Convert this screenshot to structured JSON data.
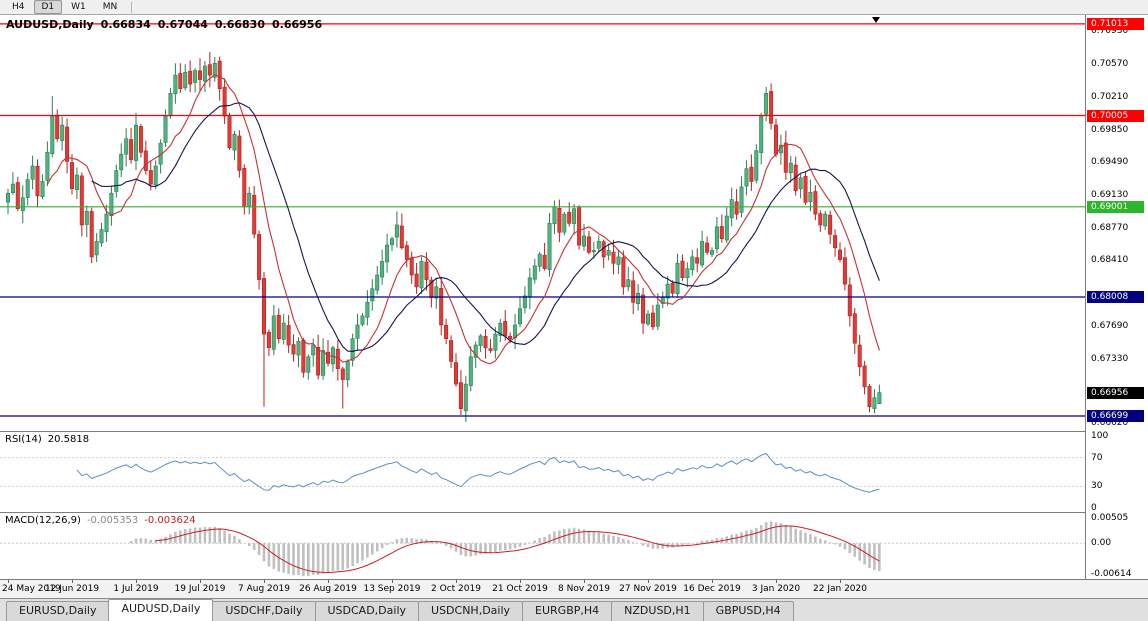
{
  "window": {
    "title": "AUDUSD,Daily"
  },
  "toolbar": {
    "timeframes": [
      {
        "label": "H4",
        "active": false
      },
      {
        "label": "D1",
        "active": true
      },
      {
        "label": "W1",
        "active": false
      },
      {
        "label": "MN",
        "active": false
      }
    ]
  },
  "chart": {
    "symbol_label": "AUDUSD,Daily",
    "ohlc": {
      "open": "0.66834",
      "high": "0.67044",
      "low": "0.66830",
      "close": "0.66956"
    }
  },
  "indicators": {
    "rsi": {
      "label": "RSI(14)",
      "value": "20.5818",
      "axis_labels": [
        "100",
        "70",
        "30",
        "0"
      ]
    },
    "macd": {
      "label": "MACD(12,26,9)",
      "main_value": "-0.005353",
      "signal_value": "-0.003624",
      "axis_labels": [
        "0.00505",
        "0.00",
        "-0.00614"
      ]
    }
  },
  "tabs": [
    {
      "label": "EURUSD,Daily",
      "active": false
    },
    {
      "label": "AUDUSD,Daily",
      "active": true
    },
    {
      "label": "USDCHF,Daily",
      "active": false
    },
    {
      "label": "USDCAD,Daily",
      "active": false
    },
    {
      "label": "USDCNH,Daily",
      "active": false
    },
    {
      "label": "EURGBP,H4",
      "active": false
    },
    {
      "label": "NZDUSD,H1",
      "active": false
    },
    {
      "label": "GBPUSD,H4",
      "active": false
    }
  ],
  "colors": {
    "up_fill": "#4db37f",
    "up_stroke": "#2e7d54",
    "down_fill": "#e53935",
    "down_stroke": "#b02320",
    "ma_fast": "#c83232",
    "ma_slow": "#15154d",
    "rsi_line": "#5b8fc9",
    "macd_hist": "#c0c0c0",
    "macd_signal": "#cc2020",
    "level_red": "#ff0000",
    "level_green": "#2db52d",
    "level_navy": "#000080",
    "current_price_bg": "#000000"
  },
  "chart_data": {
    "type": "candlestick",
    "symbol": "AUDUSD",
    "timeframe": "Daily",
    "ohlc_readout": {
      "open": 0.66834,
      "high": 0.67044,
      "low": 0.6683,
      "close": 0.66956
    },
    "x_ticks": [
      "24 May 2019",
      "12 Jun 2019",
      "1 Jul 2019",
      "19 Jul 2019",
      "7 Aug 2019",
      "26 Aug 2019",
      "13 Sep 2019",
      "2 Oct 2019",
      "21 Oct 2019",
      "8 Nov 2019",
      "27 Nov 2019",
      "16 Dec 2019",
      "3 Jan 2020",
      "22 Jan 2020"
    ],
    "price_axis": {
      "p_top": 0.71089,
      "p_bottom": 0.66556,
      "labels": [
        "0.70930",
        "0.70570",
        "0.70210",
        "0.69850",
        "0.69490",
        "0.69130",
        "0.68770",
        "0.68410",
        "0.67690",
        "0.67330",
        "0.66620"
      ]
    },
    "price_tags": [
      {
        "value": "0.71013",
        "color": "#ff0000",
        "line": true,
        "kind": "resistance"
      },
      {
        "value": "0.70005",
        "color": "#ff0000",
        "line": true,
        "kind": "resistance"
      },
      {
        "value": "0.69001",
        "color": "#2db52d",
        "line": true,
        "kind": "level"
      },
      {
        "value": "0.68008",
        "color": "#000080",
        "line": true,
        "kind": "support"
      },
      {
        "value": "0.66956",
        "color": "#000000",
        "line": false,
        "kind": "current-price"
      },
      {
        "value": "0.66699",
        "color": "#000080",
        "line": true,
        "kind": "support"
      }
    ],
    "closes": [
      0.6915,
      0.6925,
      0.6898,
      0.691,
      0.693,
      0.6945,
      0.6912,
      0.6928,
      0.696,
      0.7,
      0.6975,
      0.699,
      0.695,
      0.692,
      0.6935,
      0.688,
      0.6895,
      0.6845,
      0.6862,
      0.6875,
      0.6892,
      0.6915,
      0.694,
      0.6958,
      0.6975,
      0.6952,
      0.699,
      0.696,
      0.694,
      0.6925,
      0.6945,
      0.697,
      0.7,
      0.7025,
      0.7045,
      0.703,
      0.7048,
      0.7035,
      0.705,
      0.704,
      0.7055,
      0.7045,
      0.7058,
      0.703,
      0.7,
      0.6965,
      0.698,
      0.694,
      0.69,
      0.6915,
      0.687,
      0.682,
      0.676,
      0.6745,
      0.678,
      0.6755,
      0.6772,
      0.6748,
      0.6738,
      0.6752,
      0.6718,
      0.6735,
      0.6748,
      0.6715,
      0.6742,
      0.6728,
      0.6745,
      0.6722,
      0.671,
      0.673,
      0.6755,
      0.677,
      0.678,
      0.6795,
      0.681,
      0.6825,
      0.684,
      0.6858,
      0.6865,
      0.688,
      0.6855,
      0.6842,
      0.6825,
      0.6812,
      0.684,
      0.682,
      0.68,
      0.6812,
      0.677,
      0.6755,
      0.673,
      0.6705,
      0.6678,
      0.6705,
      0.6735,
      0.6748,
      0.6758,
      0.6745,
      0.6742,
      0.676,
      0.6772,
      0.6758,
      0.6755,
      0.677,
      0.6788,
      0.6802,
      0.6822,
      0.6835,
      0.6848,
      0.6832,
      0.6882,
      0.69,
      0.6872,
      0.6892,
      0.6882,
      0.6898,
      0.6858,
      0.6868,
      0.685,
      0.6852,
      0.6862,
      0.6845,
      0.6852,
      0.6838,
      0.6845,
      0.6812,
      0.682,
      0.6795,
      0.6805,
      0.6772,
      0.6782,
      0.6768,
      0.6792,
      0.68,
      0.6815,
      0.6805,
      0.6838,
      0.6822,
      0.6832,
      0.6845,
      0.6838,
      0.6862,
      0.685,
      0.6852,
      0.6878,
      0.6865,
      0.689,
      0.6908,
      0.6892,
      0.6922,
      0.6942,
      0.6928,
      0.6962,
      0.7,
      0.7025,
      0.6992,
      0.6958,
      0.6968,
      0.6938,
      0.6948,
      0.6918,
      0.6932,
      0.6905,
      0.6916,
      0.6892,
      0.688,
      0.6892,
      0.687,
      0.6855,
      0.6842,
      0.6815,
      0.678,
      0.675,
      0.6724,
      0.6702,
      0.668,
      0.669,
      0.66956
    ],
    "wick_high_overrides": {
      "9": 0.7022,
      "34": 0.7058,
      "42": 0.7065,
      "79": 0.6895,
      "111": 0.6907,
      "154": 0.7032
    },
    "wick_low_overrides": {
      "17": 0.6838,
      "52": 0.668,
      "68": 0.6678,
      "92": 0.6671,
      "175": 0.6674
    },
    "last_candle": {
      "open": 0.66834,
      "high": 0.67044,
      "low": 0.6683,
      "close": 0.66956
    },
    "moving_averages": [
      {
        "period": 9,
        "color": "#c83232"
      },
      {
        "period": 18,
        "color": "#15154d"
      }
    ],
    "rsi": {
      "period": 14,
      "levels": [
        100,
        70,
        30,
        0
      ],
      "last_value": 20.5818
    },
    "macd": {
      "fast": 12,
      "slow": 26,
      "signal": 9,
      "axis_max": 0.00505,
      "axis_min": -0.00614,
      "last_main": -0.005353,
      "last_signal": -0.003624
    }
  }
}
